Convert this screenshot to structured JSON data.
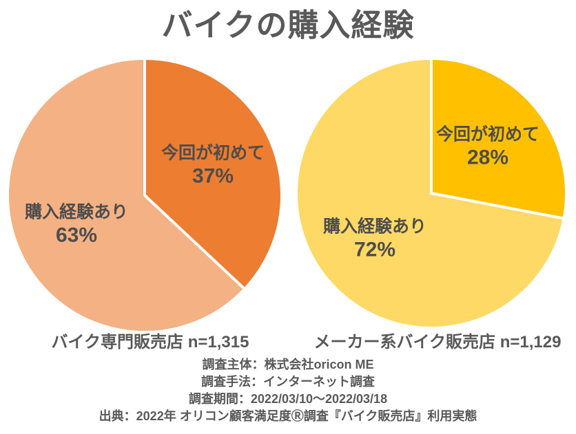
{
  "title": "バイクの購入経験",
  "text_color": "#595959",
  "label_color": "#4d4d4d",
  "chart_data": [
    {
      "type": "pie",
      "title": "バイク専門販売店 n=1,315",
      "categories": [
        "今回が初めて",
        "購入経験あり"
      ],
      "values": [
        37,
        63
      ],
      "unit": "%",
      "colors": [
        "#ED7D31",
        "#F4B183"
      ],
      "start_angle_deg": 0,
      "direction": "clockwise",
      "slice_border_color": "#FFFFFF",
      "legend": "none",
      "labels_inside": true
    },
    {
      "type": "pie",
      "title": "メーカー系バイク販売店 n=1,129",
      "categories": [
        "今回が初めて",
        "購入経験あり"
      ],
      "values": [
        28,
        72
      ],
      "unit": "%",
      "colors": [
        "#FFC000",
        "#FFD966"
      ],
      "start_angle_deg": 0,
      "direction": "clockwise",
      "slice_border_color": "#FFFFFF",
      "legend": "none",
      "labels_inside": true
    }
  ],
  "footer": {
    "lines": [
      "調査主体：株式会社oricon ME",
      "調査手法：インターネット調査",
      "調査期間：2022/03/10～2022/03/18",
      "出典：2022年 オリコン顧客満足度Ⓡ調査『バイク販売店』利用実態"
    ]
  }
}
